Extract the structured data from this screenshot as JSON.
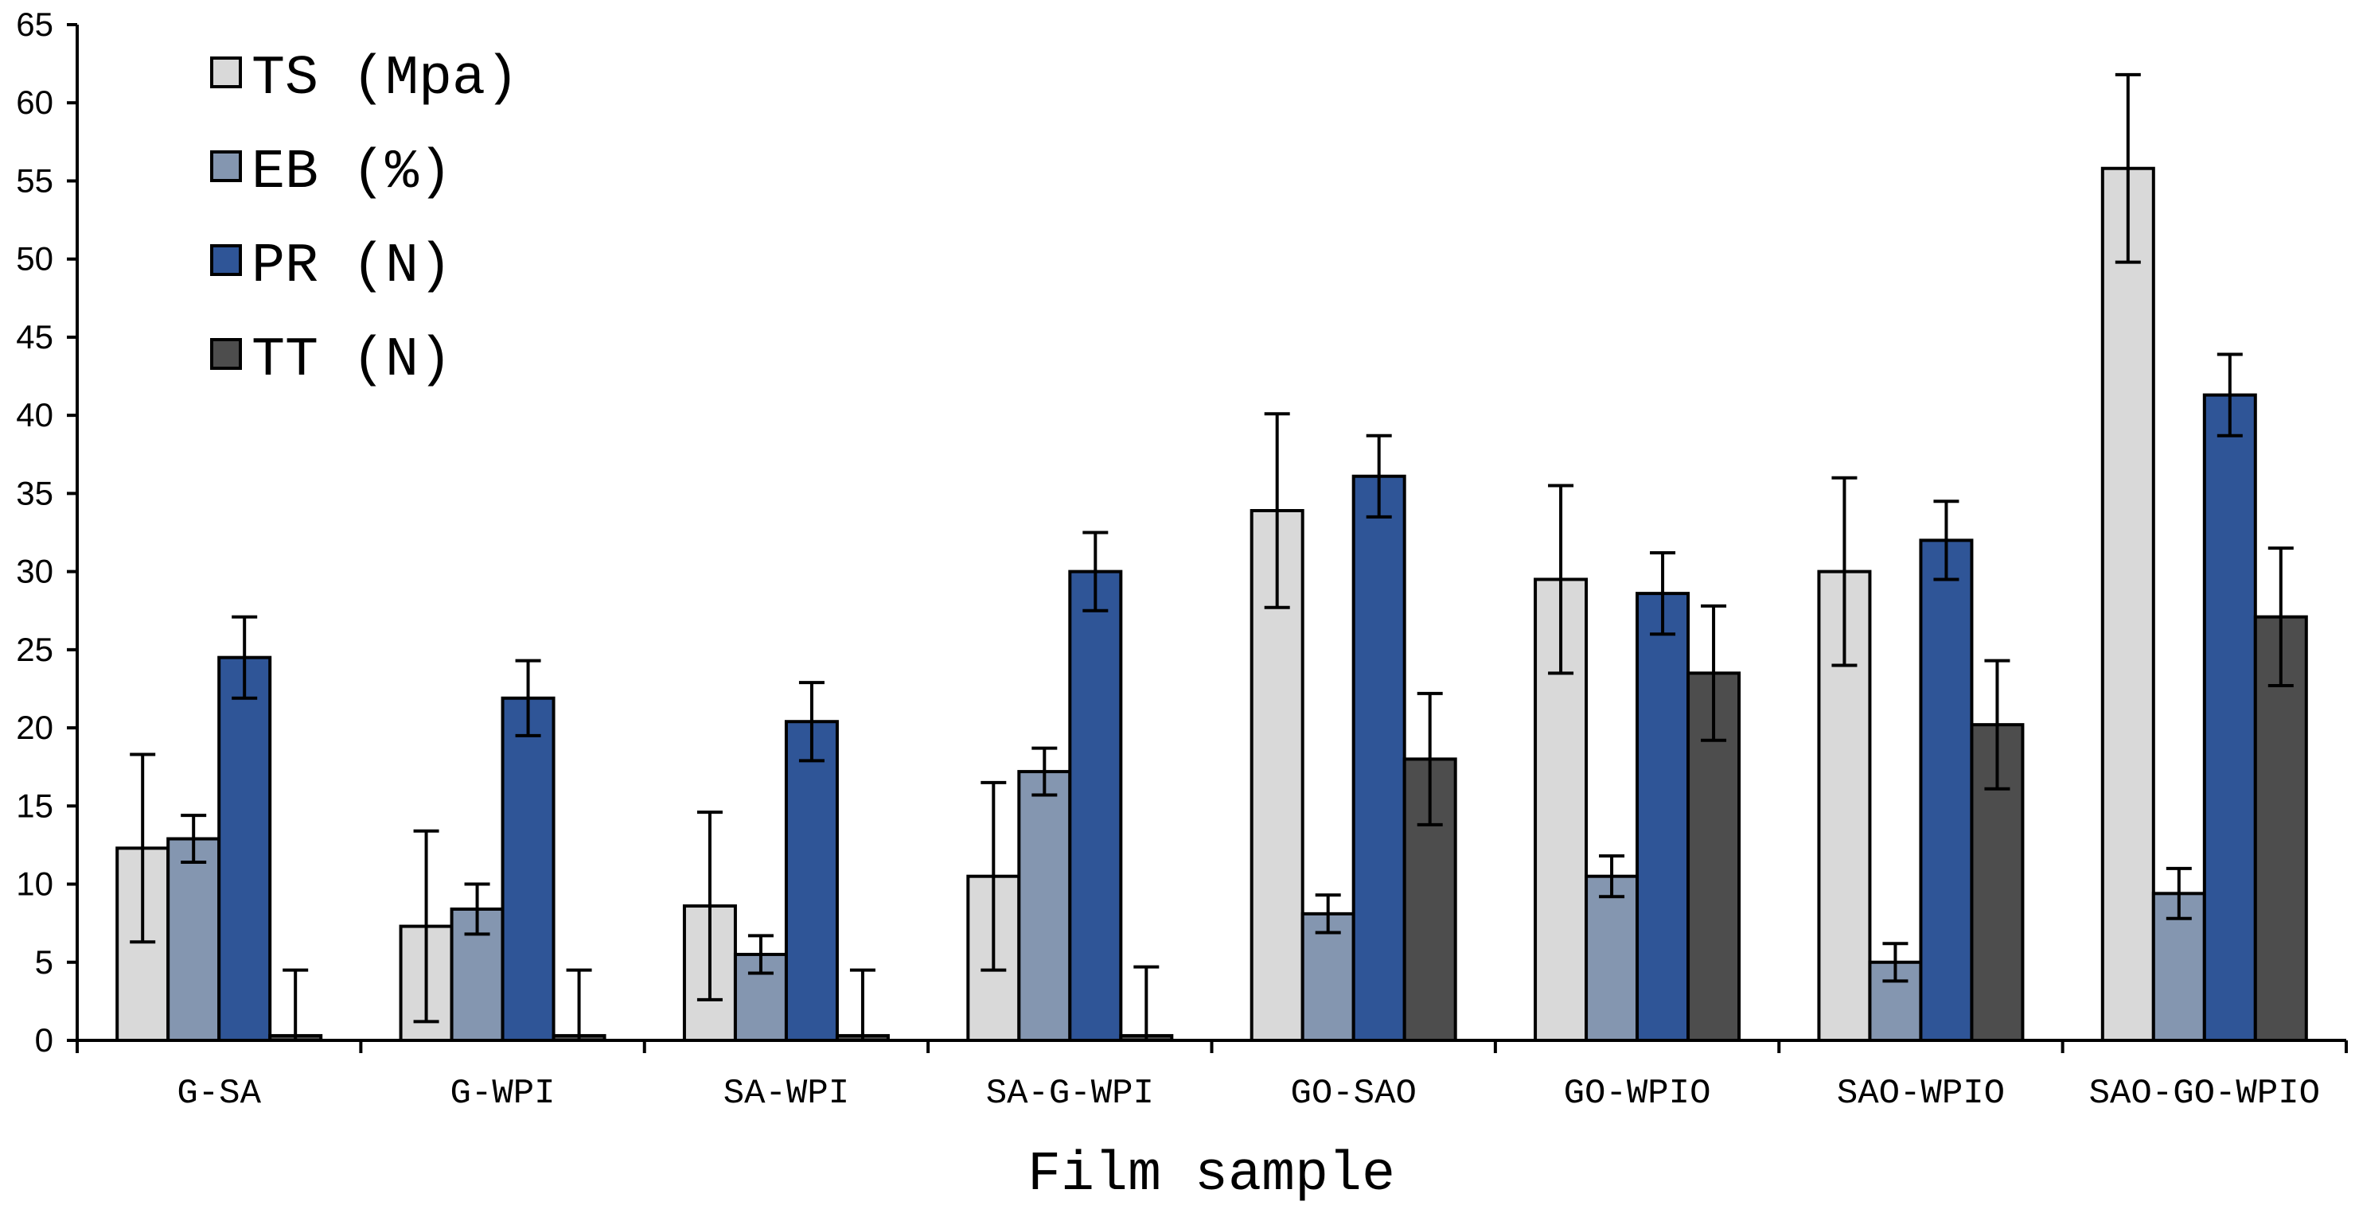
{
  "chart_data": {
    "type": "bar",
    "title": "",
    "xlabel": "Film sample",
    "ylabel": "",
    "ylim": [
      0,
      65
    ],
    "yticks": [
      "0",
      "5",
      "10",
      "15",
      "20",
      "25",
      "30",
      "35",
      "40",
      "45",
      "50",
      "55",
      "60",
      "65"
    ],
    "grid": false,
    "legend_position": "top-left",
    "categories": [
      "G-SA",
      "G-WPI",
      "SA-WPI",
      "SA-G-WPI",
      "GO-SAO",
      "GO-WPIO",
      "SAO-WPIO",
      "SAO-GO-WPIO"
    ],
    "series": [
      {
        "name": "TS (Mpa)",
        "color": "#d9d9d9",
        "values": [
          12.3,
          7.3,
          8.6,
          10.5,
          33.9,
          29.5,
          30.0,
          55.8
        ],
        "errors": [
          6.0,
          6.1,
          6.0,
          6.0,
          6.2,
          6.0,
          6.0,
          6.0
        ]
      },
      {
        "name": "EB (%)",
        "color": "#8496b0",
        "values": [
          12.9,
          8.4,
          5.5,
          17.2,
          8.1,
          10.5,
          5.0,
          9.4
        ],
        "errors": [
          1.5,
          1.6,
          1.2,
          1.5,
          1.2,
          1.3,
          1.2,
          1.6
        ]
      },
      {
        "name": "PR (N)",
        "color": "#2f5597",
        "values": [
          24.5,
          21.9,
          20.4,
          30.0,
          36.1,
          28.6,
          32.0,
          41.3
        ],
        "errors": [
          2.6,
          2.4,
          2.5,
          2.5,
          2.6,
          2.6,
          2.5,
          2.6
        ]
      },
      {
        "name": "TT (N)",
        "color": "#4d4d4d",
        "values": [
          0.3,
          0.3,
          0.3,
          0.3,
          18.0,
          23.5,
          20.2,
          27.1
        ],
        "errors": [
          4.2,
          4.2,
          4.2,
          4.4,
          4.2,
          4.3,
          4.1,
          4.4
        ]
      }
    ]
  }
}
